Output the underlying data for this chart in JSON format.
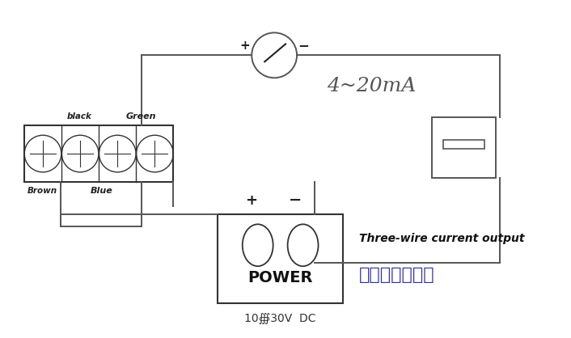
{
  "bg_color": "#ffffff",
  "line_color": "#555555",
  "fig_width": 7.06,
  "fig_height": 4.18,
  "dpi": 100,
  "ammeter_text": "4~20mA",
  "power_text": "POWER",
  "power_sub": "10∰30V  DC",
  "three_wire_en": "Three-wire current output",
  "three_wire_cn": "三线制电流输出",
  "black_label": "black",
  "green_label": "Green",
  "brown_label": "Brown",
  "blue_label": "Blue"
}
